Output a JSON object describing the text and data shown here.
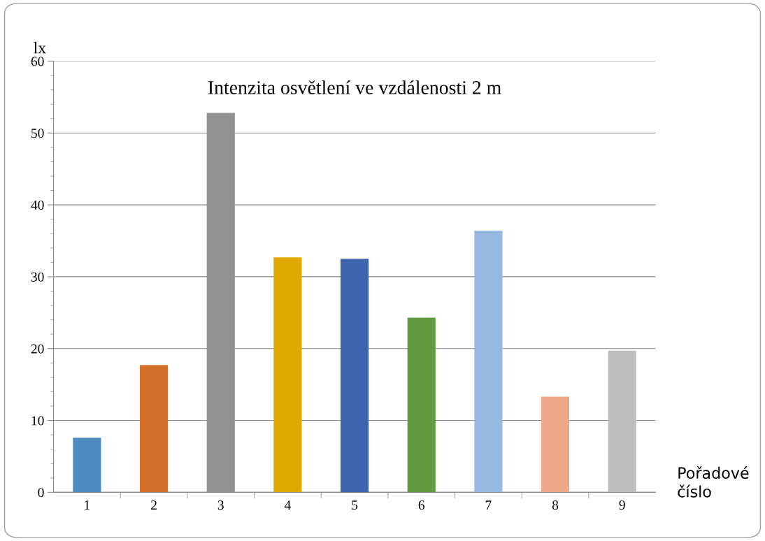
{
  "chart_data": {
    "type": "bar",
    "title": "Intenzita osvětlení ve vzdálenosti 2 m",
    "xlabel": "Pořadové číslo",
    "ylabel": "lx",
    "categories": [
      "1",
      "2",
      "3",
      "4",
      "5",
      "6",
      "7",
      "8",
      "9"
    ],
    "values": [
      7.6,
      17.7,
      52.8,
      32.7,
      32.5,
      24.3,
      36.4,
      13.3,
      19.7
    ],
    "colors": [
      "#4f8bc0",
      "#d4702c",
      "#919191",
      "#e2a802",
      "#3c66ad",
      "#629a40",
      "#97b8e0",
      "#efa888",
      "#bebebe"
    ],
    "ylim": [
      0,
      60
    ],
    "yticks": [
      0,
      {
        "value": 2,
        "label": null
      },
      {
        "value": 4,
        "label": null
      },
      {
        "value": 6,
        "label": null
      },
      {
        "value": 8,
        "label": null
      },
      10,
      {
        "value": 12,
        "label": null
      },
      {
        "value": 14,
        "label": null
      },
      {
        "value": 16,
        "label": null
      },
      {
        "value": 18,
        "label": null
      },
      20,
      {
        "value": 22,
        "label": null
      },
      {
        "value": 24,
        "label": null
      },
      {
        "value": 26,
        "label": null
      },
      {
        "value": 28,
        "label": null
      },
      30,
      {
        "value": 32,
        "label": null
      },
      {
        "value": 34,
        "label": null
      },
      {
        "value": 36,
        "label": null
      },
      {
        "value": 38,
        "label": null
      },
      40,
      {
        "value": 42,
        "label": null
      },
      {
        "value": 44,
        "label": null
      },
      {
        "value": 46,
        "label": null
      },
      {
        "value": 48,
        "label": null
      },
      50,
      {
        "value": 52,
        "label": null
      },
      {
        "value": 54,
        "label": null
      },
      {
        "value": 56,
        "label": null
      },
      {
        "value": 58,
        "label": null
      },
      60
    ],
    "grid": "y",
    "legend": false
  }
}
